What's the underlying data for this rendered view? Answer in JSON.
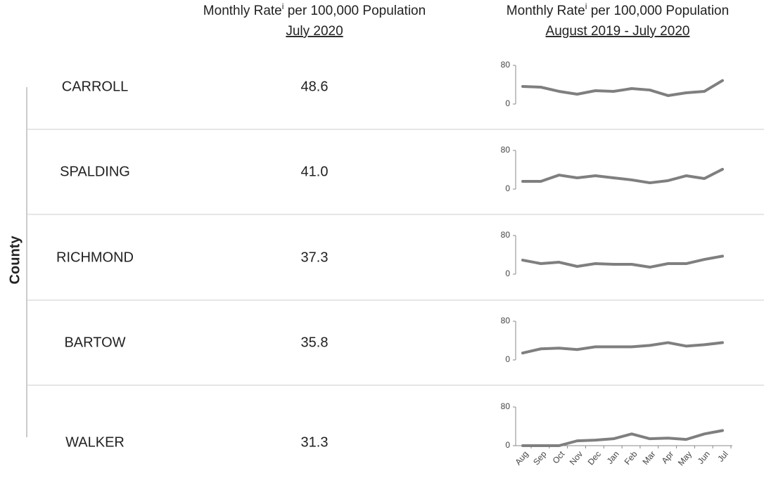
{
  "header": {
    "columns": [
      {
        "title_parts": [
          "Monthly Rate",
          "i",
          " per 100,000 Population"
        ],
        "period": "July 2020"
      },
      {
        "title_parts": [
          "Monthly Rate",
          "i",
          " per 100,000 Population"
        ],
        "period": "August 2019 - July 2020"
      }
    ]
  },
  "axis_label": "County",
  "table": {
    "rows": [
      [
        "CARROLL",
        "48.6"
      ],
      [
        "SPALDING",
        "41.0"
      ],
      [
        "RICHMOND",
        "37.3"
      ],
      [
        "BARTOW",
        "35.8"
      ],
      [
        "WALKER",
        "31.3"
      ]
    ]
  },
  "chart_data": {
    "type": "line",
    "categories": [
      "Aug",
      "Sep",
      "Oct",
      "Nov",
      "Dec",
      "Jan",
      "Feb",
      "Mar",
      "Apr",
      "May",
      "Jun",
      "Jul"
    ],
    "ylim": [
      0,
      80
    ],
    "yticks": [
      0,
      80
    ],
    "color": "#7f7f7f",
    "series": [
      {
        "values": [
          36.4,
          34.9,
          26.2,
          20.4,
          27.6,
          26.2,
          32,
          29,
          17.5,
          23.3,
          26.2,
          48.6
        ]
      },
      {
        "values": [
          16,
          16,
          29,
          23.3,
          27.6,
          23.3,
          19,
          13,
          17.5,
          27.6,
          21.8,
          41.0
        ]
      },
      {
        "values": [
          29,
          21.8,
          24.7,
          16,
          21.8,
          20.4,
          20.4,
          14.5,
          21.8,
          21.8,
          30.5,
          37.3
        ]
      },
      {
        "values": [
          14.3,
          22.9,
          24.3,
          21.4,
          27.1,
          27.1,
          27.1,
          30,
          35.7,
          28.6,
          31.4,
          35.8
        ]
      },
      {
        "values": [
          0,
          0,
          0,
          10,
          11.4,
          14.3,
          24.3,
          14.3,
          15.7,
          12.9,
          24.3,
          31.3
        ]
      }
    ]
  }
}
